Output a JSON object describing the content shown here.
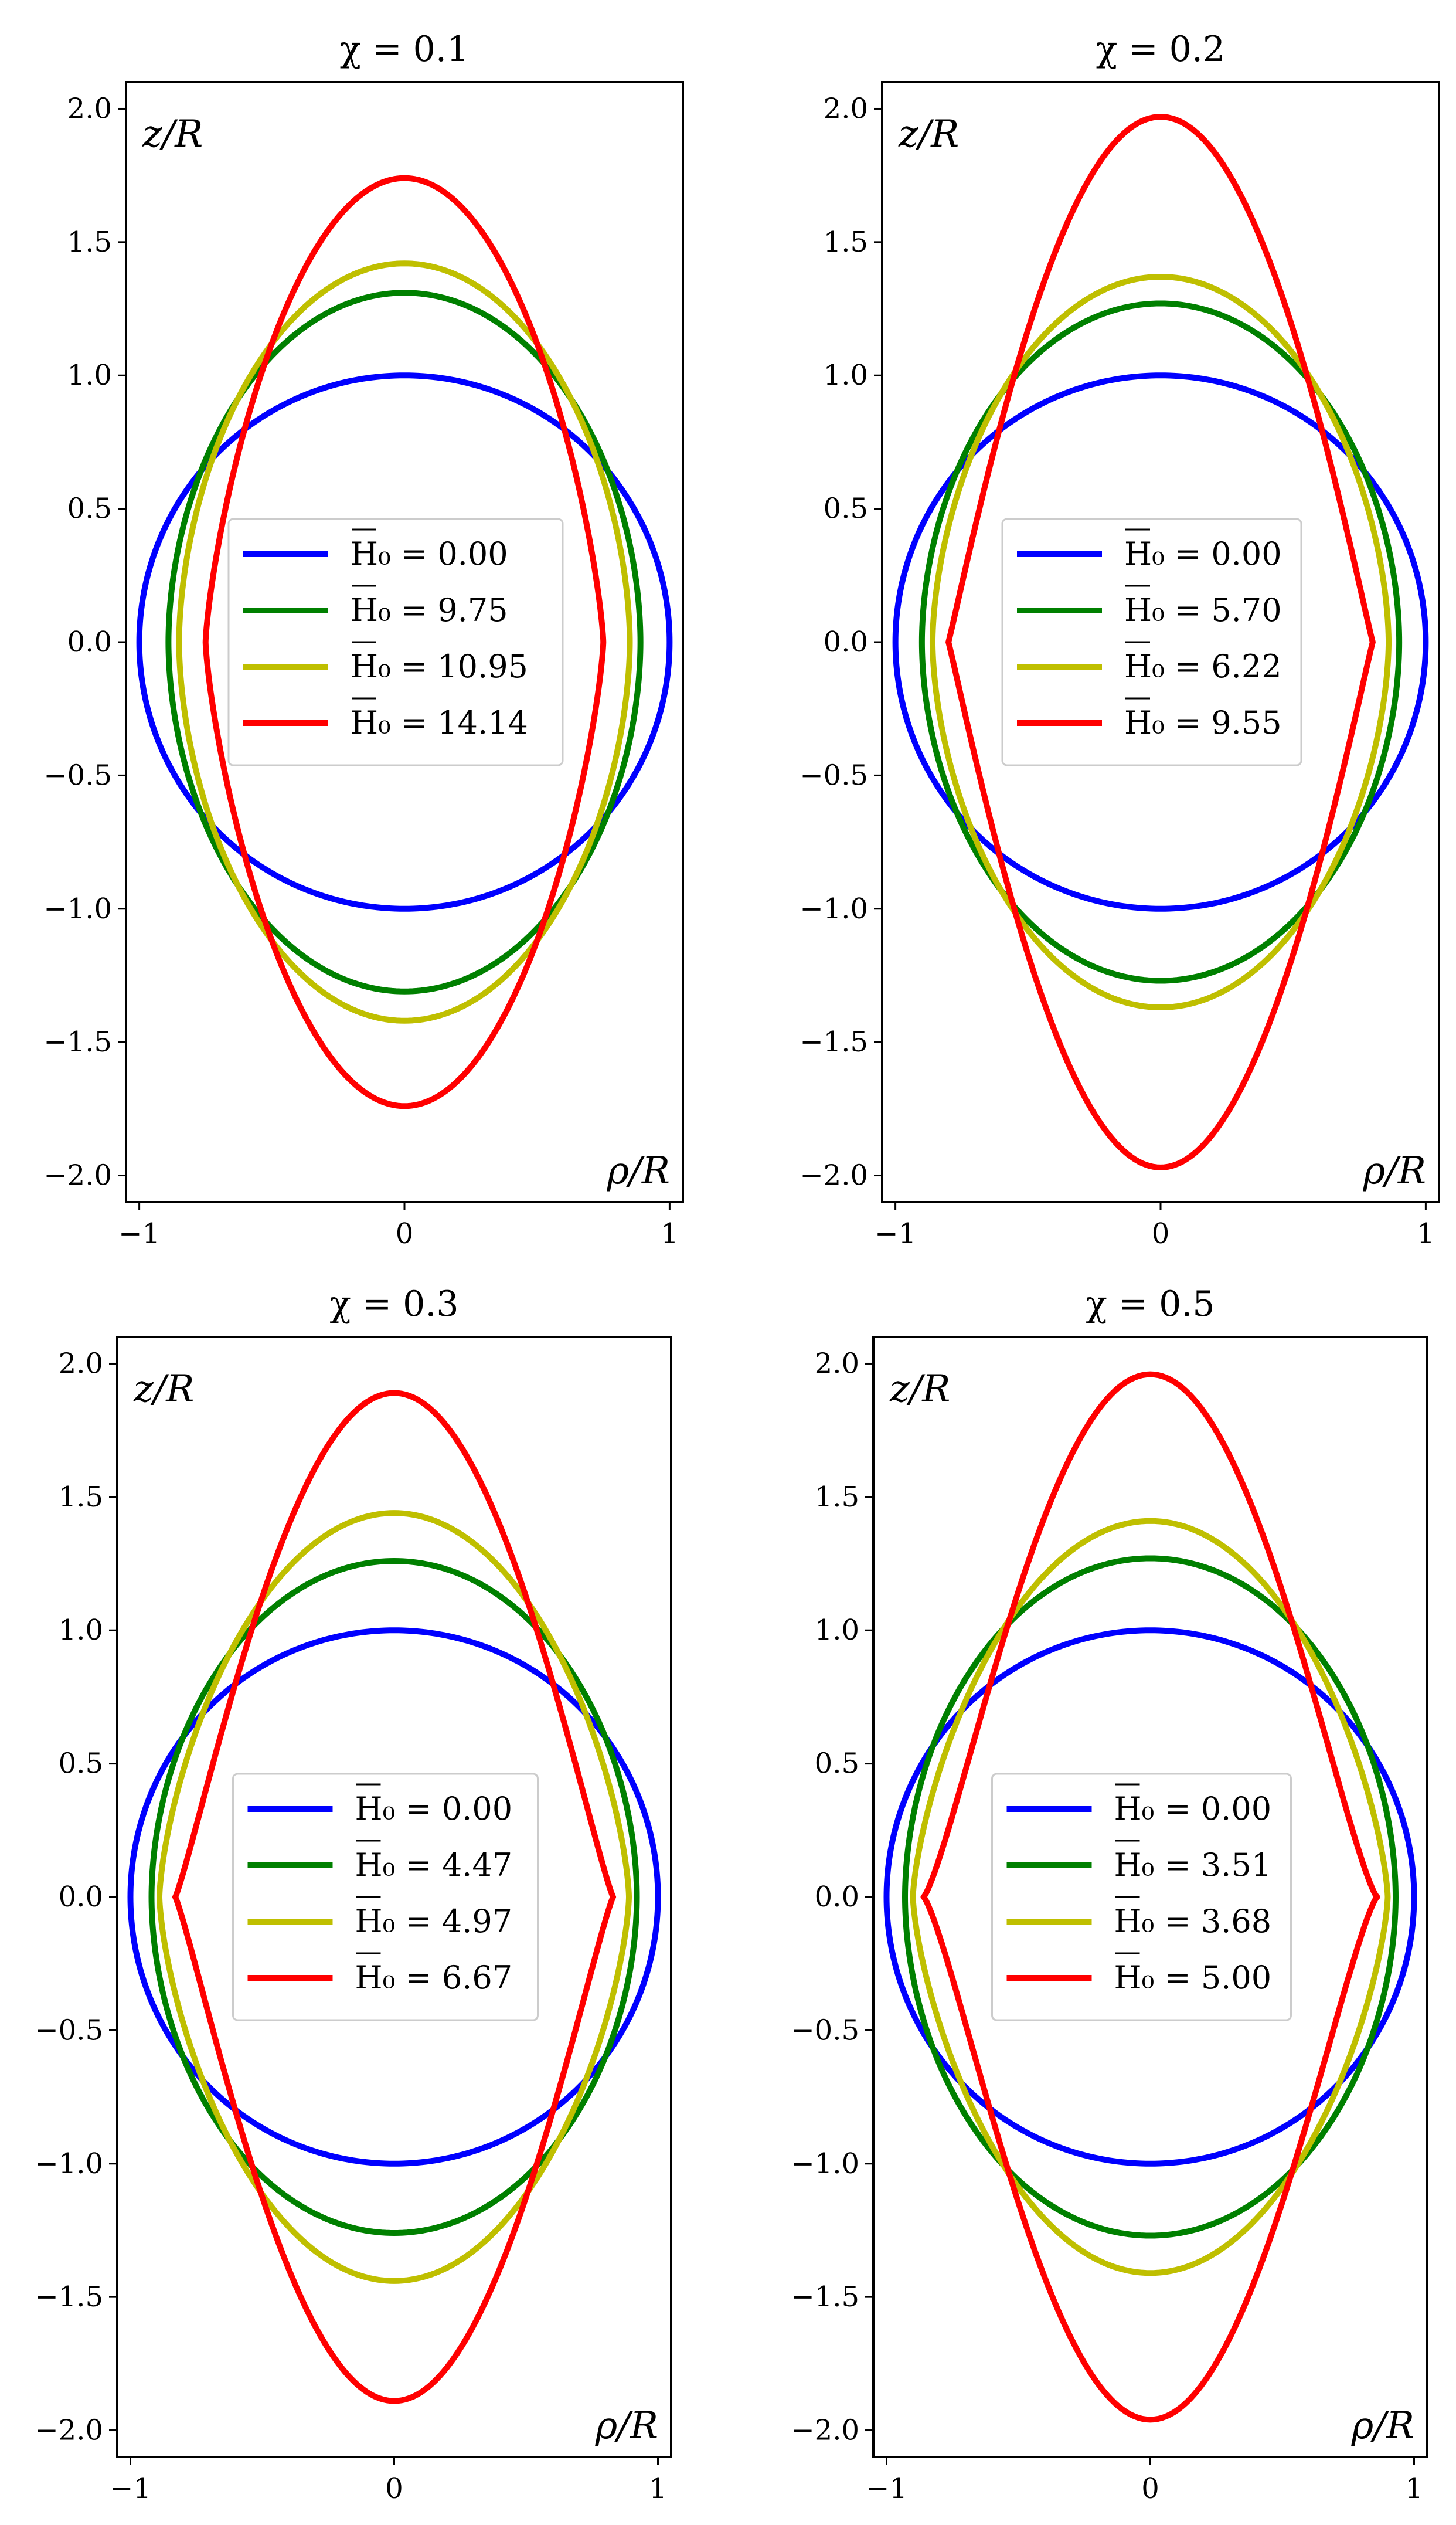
{
  "figure": {
    "layout": "2x2 grid of shape plots"
  },
  "chart_data": [
    {
      "type": "line",
      "title": "χ = 0.1",
      "xlabel": "ρ/R",
      "ylabel": "z/R",
      "xlim": [
        -1.05,
        1.05
      ],
      "ylim": [
        -2.1,
        2.1
      ],
      "xticks": [
        -1,
        0,
        1
      ],
      "yticks": [
        2.0,
        1.5,
        1.0,
        0.5,
        0.0,
        -0.5,
        -1.0,
        -1.5,
        -2.0
      ],
      "xtick_labels": [
        "−1",
        "0",
        "1"
      ],
      "ytick_labels": [
        "2.0",
        "1.5",
        "1.0",
        "0.5",
        "0.0",
        "−0.5",
        "−1.0",
        "−1.5",
        "−2.0"
      ],
      "legend_position": "center",
      "grid": false,
      "series": [
        {
          "name": "H̄0 = 0.00",
          "label": "H₀ = 0.00",
          "color": "#0000ff",
          "half_width": 1.0,
          "height": 1.0,
          "tip_power": 1.0
        },
        {
          "name": "H̄0 = 9.75",
          "label": "H₀ = 9.75",
          "color": "#008000",
          "half_width": 0.89,
          "height": 1.31,
          "tip_power": 1.05
        },
        {
          "name": "H̄0 = 10.95",
          "label": "H₀ = 10.95",
          "color": "#bfbf00",
          "half_width": 0.85,
          "height": 1.42,
          "tip_power": 1.12
        },
        {
          "name": "H̄0 = 14.14",
          "label": "H₀ = 14.14",
          "color": "#ff0000",
          "half_width": 0.75,
          "height": 1.74,
          "tip_power": 1.5
        }
      ]
    },
    {
      "type": "line",
      "title": "χ = 0.2",
      "xlabel": "ρ/R",
      "ylabel": "z/R",
      "xlim": [
        -1.05,
        1.05
      ],
      "ylim": [
        -2.1,
        2.1
      ],
      "xticks": [
        -1,
        0,
        1
      ],
      "yticks": [
        2.0,
        1.5,
        1.0,
        0.5,
        0.0,
        -0.5,
        -1.0,
        -1.5,
        -2.0
      ],
      "xtick_labels": [
        "−1",
        "0",
        "1"
      ],
      "ytick_labels": [
        "2.0",
        "1.5",
        "1.0",
        "0.5",
        "0.0",
        "−0.5",
        "−1.0",
        "−1.5",
        "−2.0"
      ],
      "legend_position": "center",
      "grid": false,
      "series": [
        {
          "name": "H̄0 = 0.00",
          "label": "H₀ = 0.00",
          "color": "#0000ff",
          "half_width": 1.0,
          "height": 1.0,
          "tip_power": 1.0
        },
        {
          "name": "H̄0 = 5.70",
          "label": "H₀ = 5.70",
          "color": "#008000",
          "half_width": 0.9,
          "height": 1.27,
          "tip_power": 1.05
        },
        {
          "name": "H̄0 = 6.22",
          "label": "H₀ = 6.22",
          "color": "#bfbf00",
          "half_width": 0.86,
          "height": 1.37,
          "tip_power": 1.15
        },
        {
          "name": "H̄0 = 9.55",
          "label": "H₀ = 9.55",
          "color": "#ff0000",
          "half_width": 0.8,
          "height": 1.97,
          "tip_power": 2.1
        }
      ]
    },
    {
      "type": "line",
      "title": "χ = 0.3",
      "xlabel": "ρ/R",
      "ylabel": "z/R",
      "xlim": [
        -1.05,
        1.05
      ],
      "ylim": [
        -2.1,
        2.1
      ],
      "xticks": [
        -1,
        0,
        1
      ],
      "yticks": [
        2.0,
        1.5,
        1.0,
        0.5,
        0.0,
        -0.5,
        -1.0,
        -1.5,
        -2.0
      ],
      "xtick_labels": [
        "−1",
        "0",
        "1"
      ],
      "ytick_labels": [
        "2.0",
        "1.5",
        "1.0",
        "0.5",
        "0.0",
        "−0.5",
        "−1.0",
        "−1.5",
        "−2.0"
      ],
      "legend_position": "center",
      "grid": false,
      "series": [
        {
          "name": "H̄0 = 0.00",
          "label": "H₀ = 0.00",
          "color": "#0000ff",
          "half_width": 1.0,
          "height": 1.0,
          "tip_power": 1.0
        },
        {
          "name": "H̄0 = 4.47",
          "label": "H₀ = 4.47",
          "color": "#008000",
          "half_width": 0.92,
          "height": 1.26,
          "tip_power": 1.05
        },
        {
          "name": "H̄0 = 4.97",
          "label": "H₀ = 4.97",
          "color": "#bfbf00",
          "half_width": 0.89,
          "height": 1.44,
          "tip_power": 1.35
        },
        {
          "name": "H̄0 = 6.67",
          "label": "H₀ = 6.67",
          "color": "#ff0000",
          "half_width": 0.83,
          "height": 1.89,
          "tip_power": 2.3
        }
      ]
    },
    {
      "type": "line",
      "title": "χ = 0.5",
      "xlabel": "ρ/R",
      "ylabel": "z/R",
      "xlim": [
        -1.05,
        1.05
      ],
      "ylim": [
        -2.1,
        2.1
      ],
      "xticks": [
        -1,
        0,
        1
      ],
      "yticks": [
        2.0,
        1.5,
        1.0,
        0.5,
        0.0,
        -0.5,
        -1.0,
        -1.5,
        -2.0
      ],
      "xtick_labels": [
        "−1",
        "0",
        "1"
      ],
      "ytick_labels": [
        "2.0",
        "1.5",
        "1.0",
        "0.5",
        "0.0",
        "−0.5",
        "−1.0",
        "−1.5",
        "−2.0"
      ],
      "legend_position": "center",
      "grid": false,
      "series": [
        {
          "name": "H̄0 = 0.00",
          "label": "H₀ = 0.00",
          "color": "#0000ff",
          "half_width": 1.0,
          "height": 1.0,
          "tip_power": 1.0
        },
        {
          "name": "H̄0 = 3.51",
          "label": "H₀ = 3.51",
          "color": "#008000",
          "half_width": 0.93,
          "height": 1.27,
          "tip_power": 1.05
        },
        {
          "name": "H̄0 = 3.68",
          "label": "H₀ = 3.68",
          "color": "#bfbf00",
          "half_width": 0.9,
          "height": 1.41,
          "tip_power": 1.4
        },
        {
          "name": "H̄0 = 5.00",
          "label": "H₀ = 5.00",
          "color": "#ff0000",
          "half_width": 0.86,
          "height": 1.96,
          "tip_power": 2.6
        }
      ]
    }
  ]
}
